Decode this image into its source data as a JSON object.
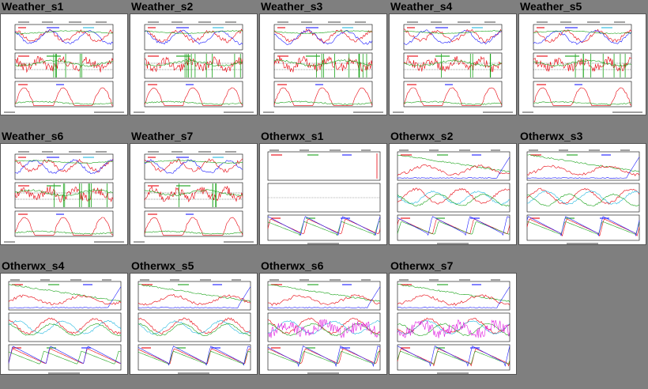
{
  "page": {
    "background": "#7f7f7f"
  },
  "colors": {
    "red": "#e8000b",
    "green": "#1aa31a",
    "blue": "#1a1aff",
    "cyan": "#22b8e0",
    "magenta": "#e020e0",
    "black": "#000000"
  },
  "thumbnails": [
    {
      "label": "Weather_s1",
      "kind": "weather",
      "seed": 11,
      "row": 0,
      "col": 0
    },
    {
      "label": "Weather_s2",
      "kind": "weather",
      "seed": 23,
      "row": 0,
      "col": 1
    },
    {
      "label": "Weather_s3",
      "kind": "weather",
      "seed": 37,
      "row": 0,
      "col": 2
    },
    {
      "label": "Weather_s4",
      "kind": "weather",
      "seed": 41,
      "row": 0,
      "col": 3
    },
    {
      "label": "Weather_s5",
      "kind": "weather",
      "seed": 53,
      "row": 0,
      "col": 4
    },
    {
      "label": "Weather_s6",
      "kind": "weather",
      "seed": 67,
      "row": 1,
      "col": 0
    },
    {
      "label": "Weather_s7",
      "kind": "weather",
      "seed": 71,
      "row": 1,
      "col": 1
    },
    {
      "label": "Otherwx_s1",
      "kind": "otherwx_sparse",
      "seed": 83,
      "row": 1,
      "col": 2
    },
    {
      "label": "Otherwx_s2",
      "kind": "otherwx",
      "seed": 97,
      "row": 1,
      "col": 3
    },
    {
      "label": "Otherwx_s3",
      "kind": "otherwx",
      "seed": 101,
      "row": 1,
      "col": 4
    },
    {
      "label": "Otherwx_s4",
      "kind": "otherwx",
      "seed": 113,
      "row": 2,
      "col": 0
    },
    {
      "label": "Otherwx_s5",
      "kind": "otherwx",
      "seed": 127,
      "row": 2,
      "col": 1
    },
    {
      "label": "Otherwx_s6",
      "kind": "otherwx_noisy",
      "seed": 131,
      "row": 2,
      "col": 2
    },
    {
      "label": "Otherwx_s7",
      "kind": "otherwx_noisy",
      "seed": 139,
      "row": 2,
      "col": 3
    }
  ]
}
